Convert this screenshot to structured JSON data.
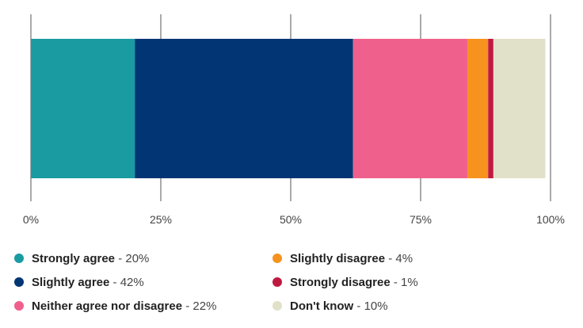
{
  "chart_data": {
    "type": "bar",
    "orientation": "horizontal",
    "stacked": true,
    "categories": [
      ""
    ],
    "series": [
      {
        "name": "Strongly agree",
        "values": [
          20
        ],
        "color": "#1a9ba2"
      },
      {
        "name": "Slightly agree",
        "values": [
          42
        ],
        "color": "#023574"
      },
      {
        "name": "Neither agree nor disagree",
        "values": [
          22
        ],
        "color": "#f0608c"
      },
      {
        "name": "Slightly disagree",
        "values": [
          4
        ],
        "color": "#f7921e"
      },
      {
        "name": "Strongly disagree",
        "values": [
          1
        ],
        "color": "#c0193f"
      },
      {
        "name": "Don't know",
        "values": [
          10
        ],
        "color": "#e1e0c8"
      }
    ],
    "xlim": [
      0,
      100
    ],
    "xticks": [
      0,
      25,
      50,
      75,
      100
    ],
    "xtick_labels": [
      "0%",
      "25%",
      "50%",
      "75%",
      "100%"
    ],
    "grid": "vertical",
    "legend_position": "bottom",
    "title": "",
    "xlabel": "",
    "ylabel": ""
  },
  "legend": {
    "items": [
      {
        "name": "Strongly agree",
        "value": "20%",
        "color": "#1a9ba2"
      },
      {
        "name": "Slightly agree",
        "value": "42%",
        "color": "#023574"
      },
      {
        "name": "Neither agree nor disagree",
        "value": "22%",
        "color": "#f0608c"
      },
      {
        "name": "Slightly disagree",
        "value": "4%",
        "color": "#f7921e"
      },
      {
        "name": "Strongly disagree",
        "value": "1%",
        "color": "#c0193f"
      },
      {
        "name": "Don't know",
        "value": "10%",
        "color": "#e1e0c8"
      }
    ],
    "separator": " - "
  }
}
